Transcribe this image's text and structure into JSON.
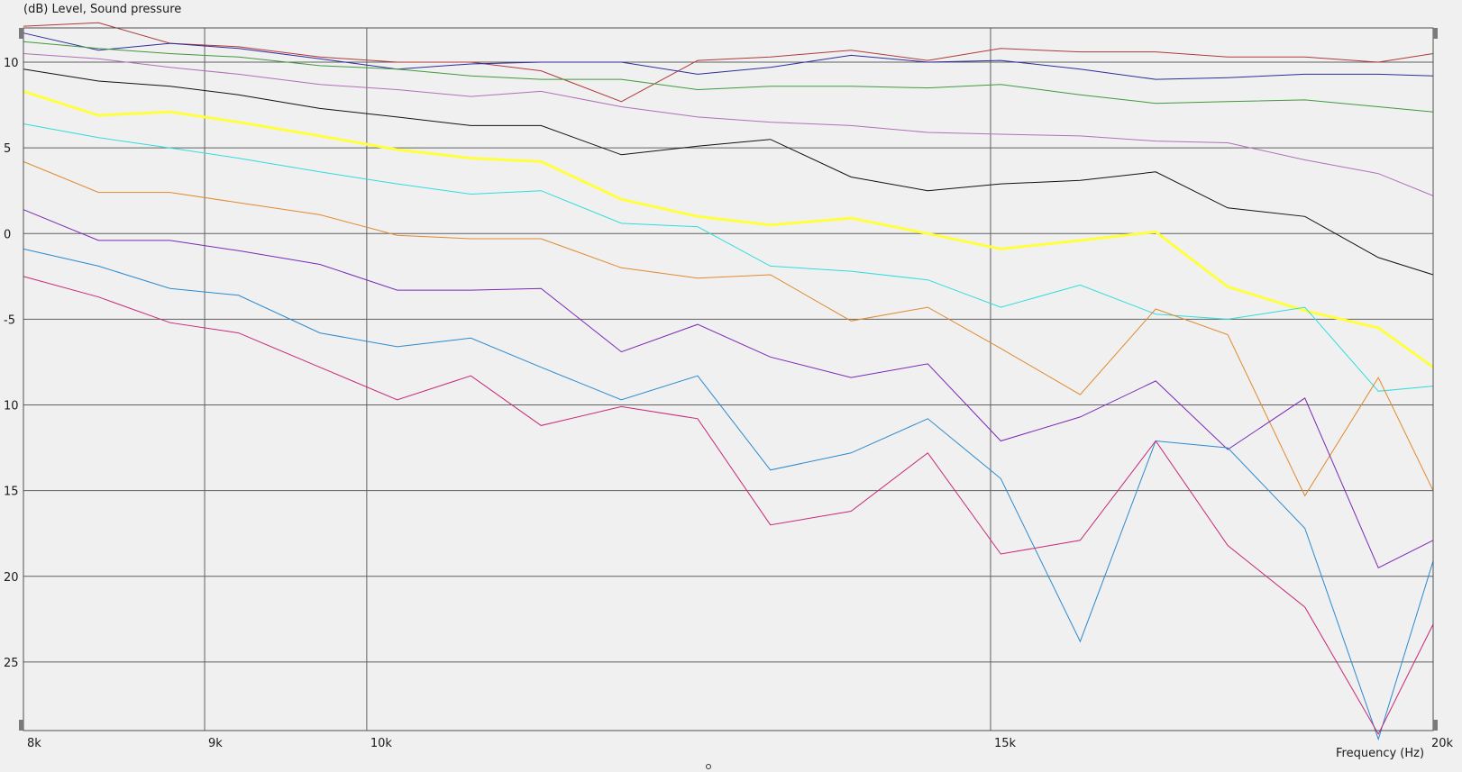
{
  "chart_data": {
    "type": "line",
    "ylabel": "(dB)  Level, Sound pressure",
    "xlabel": "Frequency  (Hz)",
    "x_scale": "log",
    "xlim": [
      8000,
      20000
    ],
    "ylim": [
      -29,
      12
    ],
    "grid": true,
    "legend": "none",
    "x_ticks": [
      {
        "value": 8000,
        "label": "8k"
      },
      {
        "value": 9000,
        "label": "9k"
      },
      {
        "value": 10000,
        "label": "10k"
      },
      {
        "value": 15000,
        "label": "15k"
      },
      {
        "value": 20000,
        "label": "20k"
      }
    ],
    "y_ticks": [
      {
        "value": 10,
        "label": "10"
      },
      {
        "value": 5,
        "label": "5"
      },
      {
        "value": 0,
        "label": "0"
      },
      {
        "value": -5,
        "label": "-5"
      },
      {
        "value": -10,
        "label": "10"
      },
      {
        "value": -15,
        "label": "15"
      },
      {
        "value": -20,
        "label": "20"
      },
      {
        "value": -25,
        "label": "25"
      }
    ],
    "x": [
      8000,
      8400,
      8800,
      9200,
      9700,
      10200,
      10700,
      11200,
      11800,
      12400,
      13000,
      13700,
      14400,
      15100,
      15900,
      16700,
      17500,
      18400,
      19300,
      20000
    ],
    "series": [
      {
        "color": "#b03a3a",
        "width": 1,
        "values": [
          12.1,
          12.3,
          11.1,
          10.9,
          10.3,
          10.0,
          10.0,
          9.5,
          7.7,
          10.1,
          10.3,
          10.7,
          10.1,
          10.8,
          10.6,
          10.6,
          10.3,
          10.3,
          10.0,
          10.5
        ]
      },
      {
        "color": "#2c2c9c",
        "width": 1,
        "values": [
          11.7,
          10.7,
          11.1,
          10.8,
          10.2,
          9.6,
          9.9,
          10.0,
          10.0,
          9.3,
          9.7,
          10.4,
          10.0,
          10.1,
          9.6,
          9.0,
          9.1,
          9.3,
          9.3,
          9.2
        ]
      },
      {
        "color": "#3e9a3e",
        "width": 1,
        "values": [
          11.2,
          10.8,
          10.5,
          10.3,
          9.8,
          9.6,
          9.2,
          9.0,
          9.0,
          8.4,
          8.6,
          8.6,
          8.5,
          8.7,
          8.1,
          7.6,
          7.7,
          7.8,
          7.4,
          7.1
        ]
      },
      {
        "color": "#b070b8",
        "width": 1,
        "values": [
          10.5,
          10.2,
          9.7,
          9.3,
          8.7,
          8.4,
          8.0,
          8.3,
          7.4,
          6.8,
          6.5,
          6.3,
          5.9,
          5.8,
          5.7,
          5.4,
          5.3,
          4.3,
          3.5,
          2.2
        ]
      },
      {
        "color": "#111111",
        "width": 1,
        "values": [
          9.6,
          8.9,
          8.6,
          8.1,
          7.3,
          6.8,
          6.3,
          6.3,
          4.6,
          5.1,
          5.5,
          3.3,
          2.5,
          2.9,
          3.1,
          3.6,
          1.5,
          1.0,
          -1.4,
          -2.4
        ]
      },
      {
        "color": "#ffff40",
        "width": 3,
        "values": [
          8.3,
          6.9,
          7.1,
          6.5,
          5.7,
          4.9,
          4.4,
          4.2,
          2.0,
          1.0,
          0.5,
          0.9,
          0.0,
          -0.9,
          -0.4,
          0.1,
          -3.1,
          -4.5,
          -5.5,
          -7.8
        ]
      },
      {
        "color": "#30dcdc",
        "width": 1,
        "values": [
          6.4,
          5.6,
          5.0,
          4.4,
          3.6,
          2.9,
          2.3,
          2.5,
          0.6,
          0.4,
          -1.9,
          -2.2,
          -2.7,
          -4.3,
          -3.0,
          -4.7,
          -5.0,
          -4.3,
          -9.2,
          -8.9
        ]
      },
      {
        "color": "#e08a30",
        "width": 1,
        "values": [
          4.2,
          2.4,
          2.4,
          1.8,
          1.1,
          -0.1,
          -0.3,
          -0.3,
          -2.0,
          -2.6,
          -2.4,
          -5.1,
          -4.3,
          -6.7,
          -9.4,
          -4.4,
          -5.9,
          -15.3,
          -8.4,
          -15.0
        ]
      },
      {
        "color": "#7c28b8",
        "width": 1,
        "values": [
          1.4,
          -0.4,
          -0.4,
          -1.0,
          -1.8,
          -3.3,
          -3.3,
          -3.2,
          -6.9,
          -5.3,
          -7.2,
          -8.4,
          -7.6,
          -12.1,
          -10.7,
          -8.6,
          -12.6,
          -9.6,
          -19.5,
          -17.9
        ]
      },
      {
        "color": "#2a8ad0",
        "width": 1,
        "values": [
          -0.9,
          -1.9,
          -3.2,
          -3.6,
          -5.8,
          -6.6,
          -6.1,
          -7.8,
          -9.7,
          -8.3,
          -13.8,
          -12.8,
          -10.8,
          -14.3,
          -23.8,
          -12.1,
          -12.5,
          -17.2,
          -29.5,
          -19.1
        ]
      },
      {
        "color": "#c82878",
        "width": 1,
        "values": [
          -2.5,
          -3.7,
          -5.2,
          -5.8,
          -7.8,
          -9.7,
          -8.3,
          -11.2,
          -10.1,
          -10.8,
          -17.0,
          -16.2,
          -12.8,
          -18.7,
          -17.9,
          -12.1,
          -18.2,
          -21.8,
          -29.2,
          -22.8
        ]
      }
    ]
  }
}
